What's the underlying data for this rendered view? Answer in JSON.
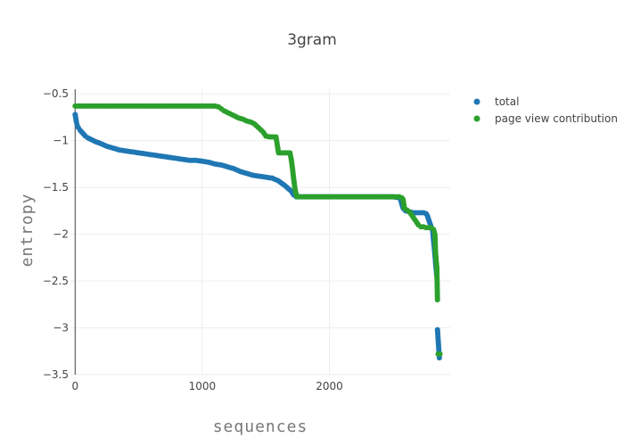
{
  "chart_data": {
    "type": "scatter",
    "title": "3gram",
    "xlabel": "sequences",
    "ylabel": "entropy",
    "xlim": [
      -30,
      2950
    ],
    "ylim": [
      -3.5,
      -0.45
    ],
    "x_ticks": [
      0,
      1000,
      2000
    ],
    "x_tick_labels": [
      "0",
      "1000",
      "2000"
    ],
    "y_ticks": [
      -0.5,
      -1,
      -1.5,
      -2,
      -2.5,
      -3,
      -3.5
    ],
    "y_tick_labels": [
      "−0.5",
      "−1",
      "−1.5",
      "−2",
      "−2.5",
      "−3",
      "−3.5"
    ],
    "grid": true,
    "legend_position": "top-right",
    "series": [
      {
        "name": "total",
        "color": "#1f77b4",
        "points": [
          [
            0,
            -0.72
          ],
          [
            5,
            -0.76
          ],
          [
            10,
            -0.8
          ],
          [
            15,
            -0.83
          ],
          [
            25,
            -0.86
          ],
          [
            40,
            -0.89
          ],
          [
            60,
            -0.92
          ],
          [
            80,
            -0.95
          ],
          [
            100,
            -0.97
          ],
          [
            130,
            -0.99
          ],
          [
            160,
            -1.01
          ],
          [
            200,
            -1.03
          ],
          [
            250,
            -1.06
          ],
          [
            300,
            -1.08
          ],
          [
            350,
            -1.1
          ],
          [
            400,
            -1.11
          ],
          [
            450,
            -1.12
          ],
          [
            500,
            -1.13
          ],
          [
            550,
            -1.14
          ],
          [
            600,
            -1.15
          ],
          [
            650,
            -1.16
          ],
          [
            700,
            -1.17
          ],
          [
            750,
            -1.18
          ],
          [
            800,
            -1.19
          ],
          [
            850,
            -1.2
          ],
          [
            900,
            -1.21
          ],
          [
            950,
            -1.21
          ],
          [
            1000,
            -1.22
          ],
          [
            1050,
            -1.23
          ],
          [
            1100,
            -1.25
          ],
          [
            1150,
            -1.26
          ],
          [
            1200,
            -1.28
          ],
          [
            1250,
            -1.3
          ],
          [
            1300,
            -1.33
          ],
          [
            1350,
            -1.35
          ],
          [
            1400,
            -1.37
          ],
          [
            1450,
            -1.38
          ],
          [
            1500,
            -1.39
          ],
          [
            1550,
            -1.4
          ],
          [
            1600,
            -1.43
          ],
          [
            1650,
            -1.48
          ],
          [
            1700,
            -1.54
          ],
          [
            1720,
            -1.58
          ],
          [
            1740,
            -1.6
          ],
          [
            1800,
            -1.6
          ],
          [
            1900,
            -1.6
          ],
          [
            2000,
            -1.6
          ],
          [
            2100,
            -1.6
          ],
          [
            2200,
            -1.6
          ],
          [
            2300,
            -1.6
          ],
          [
            2400,
            -1.6
          ],
          [
            2500,
            -1.6
          ],
          [
            2550,
            -1.61
          ],
          [
            2560,
            -1.63
          ],
          [
            2570,
            -1.68
          ],
          [
            2580,
            -1.72
          ],
          [
            2600,
            -1.75
          ],
          [
            2630,
            -1.76
          ],
          [
            2660,
            -1.77
          ],
          [
            2700,
            -1.77
          ],
          [
            2740,
            -1.77
          ],
          [
            2760,
            -1.78
          ],
          [
            2770,
            -1.8
          ],
          [
            2780,
            -1.84
          ],
          [
            2790,
            -1.88
          ],
          [
            2800,
            -1.92
          ],
          [
            2810,
            -1.95
          ],
          [
            2815,
            -2.0
          ],
          [
            2820,
            -2.08
          ],
          [
            2825,
            -2.15
          ],
          [
            2830,
            -2.22
          ],
          [
            2835,
            -2.3
          ],
          [
            2840,
            -2.38
          ],
          [
            2845,
            -2.45
          ],
          [
            2850,
            -3.02
          ],
          [
            2865,
            -3.32
          ]
        ]
      },
      {
        "name": "page view contribution",
        "color": "#2ca02c",
        "points": [
          [
            0,
            -0.63
          ],
          [
            100,
            -0.63
          ],
          [
            200,
            -0.63
          ],
          [
            300,
            -0.63
          ],
          [
            400,
            -0.63
          ],
          [
            500,
            -0.63
          ],
          [
            600,
            -0.63
          ],
          [
            700,
            -0.63
          ],
          [
            800,
            -0.63
          ],
          [
            900,
            -0.63
          ],
          [
            1000,
            -0.63
          ],
          [
            1100,
            -0.63
          ],
          [
            1130,
            -0.64
          ],
          [
            1150,
            -0.66
          ],
          [
            1170,
            -0.68
          ],
          [
            1200,
            -0.7
          ],
          [
            1230,
            -0.72
          ],
          [
            1260,
            -0.74
          ],
          [
            1290,
            -0.76
          ],
          [
            1320,
            -0.77
          ],
          [
            1350,
            -0.79
          ],
          [
            1380,
            -0.8
          ],
          [
            1410,
            -0.82
          ],
          [
            1450,
            -0.87
          ],
          [
            1480,
            -0.91
          ],
          [
            1500,
            -0.95
          ],
          [
            1530,
            -0.96
          ],
          [
            1560,
            -0.96
          ],
          [
            1580,
            -0.96
          ],
          [
            1600,
            -1.13
          ],
          [
            1630,
            -1.13
          ],
          [
            1660,
            -1.13
          ],
          [
            1690,
            -1.13
          ],
          [
            1700,
            -1.2
          ],
          [
            1710,
            -1.3
          ],
          [
            1720,
            -1.42
          ],
          [
            1730,
            -1.52
          ],
          [
            1740,
            -1.58
          ],
          [
            1745,
            -1.6
          ],
          [
            1800,
            -1.6
          ],
          [
            1900,
            -1.6
          ],
          [
            2000,
            -1.6
          ],
          [
            2100,
            -1.6
          ],
          [
            2200,
            -1.6
          ],
          [
            2300,
            -1.6
          ],
          [
            2400,
            -1.6
          ],
          [
            2500,
            -1.6
          ],
          [
            2550,
            -1.6
          ],
          [
            2570,
            -1.61
          ],
          [
            2580,
            -1.63
          ],
          [
            2590,
            -1.72
          ],
          [
            2610,
            -1.74
          ],
          [
            2630,
            -1.76
          ],
          [
            2650,
            -1.8
          ],
          [
            2670,
            -1.84
          ],
          [
            2690,
            -1.88
          ],
          [
            2700,
            -1.9
          ],
          [
            2720,
            -1.92
          ],
          [
            2740,
            -1.92
          ],
          [
            2760,
            -1.93
          ],
          [
            2780,
            -1.93
          ],
          [
            2800,
            -1.93
          ],
          [
            2820,
            -1.95
          ],
          [
            2830,
            -2.0
          ],
          [
            2835,
            -2.2
          ],
          [
            2840,
            -2.28
          ],
          [
            2845,
            -2.35
          ],
          [
            2850,
            -2.7
          ],
          [
            2855,
            -3.28
          ],
          [
            2860,
            -3.28
          ],
          [
            2870,
            -3.28
          ]
        ]
      }
    ]
  }
}
